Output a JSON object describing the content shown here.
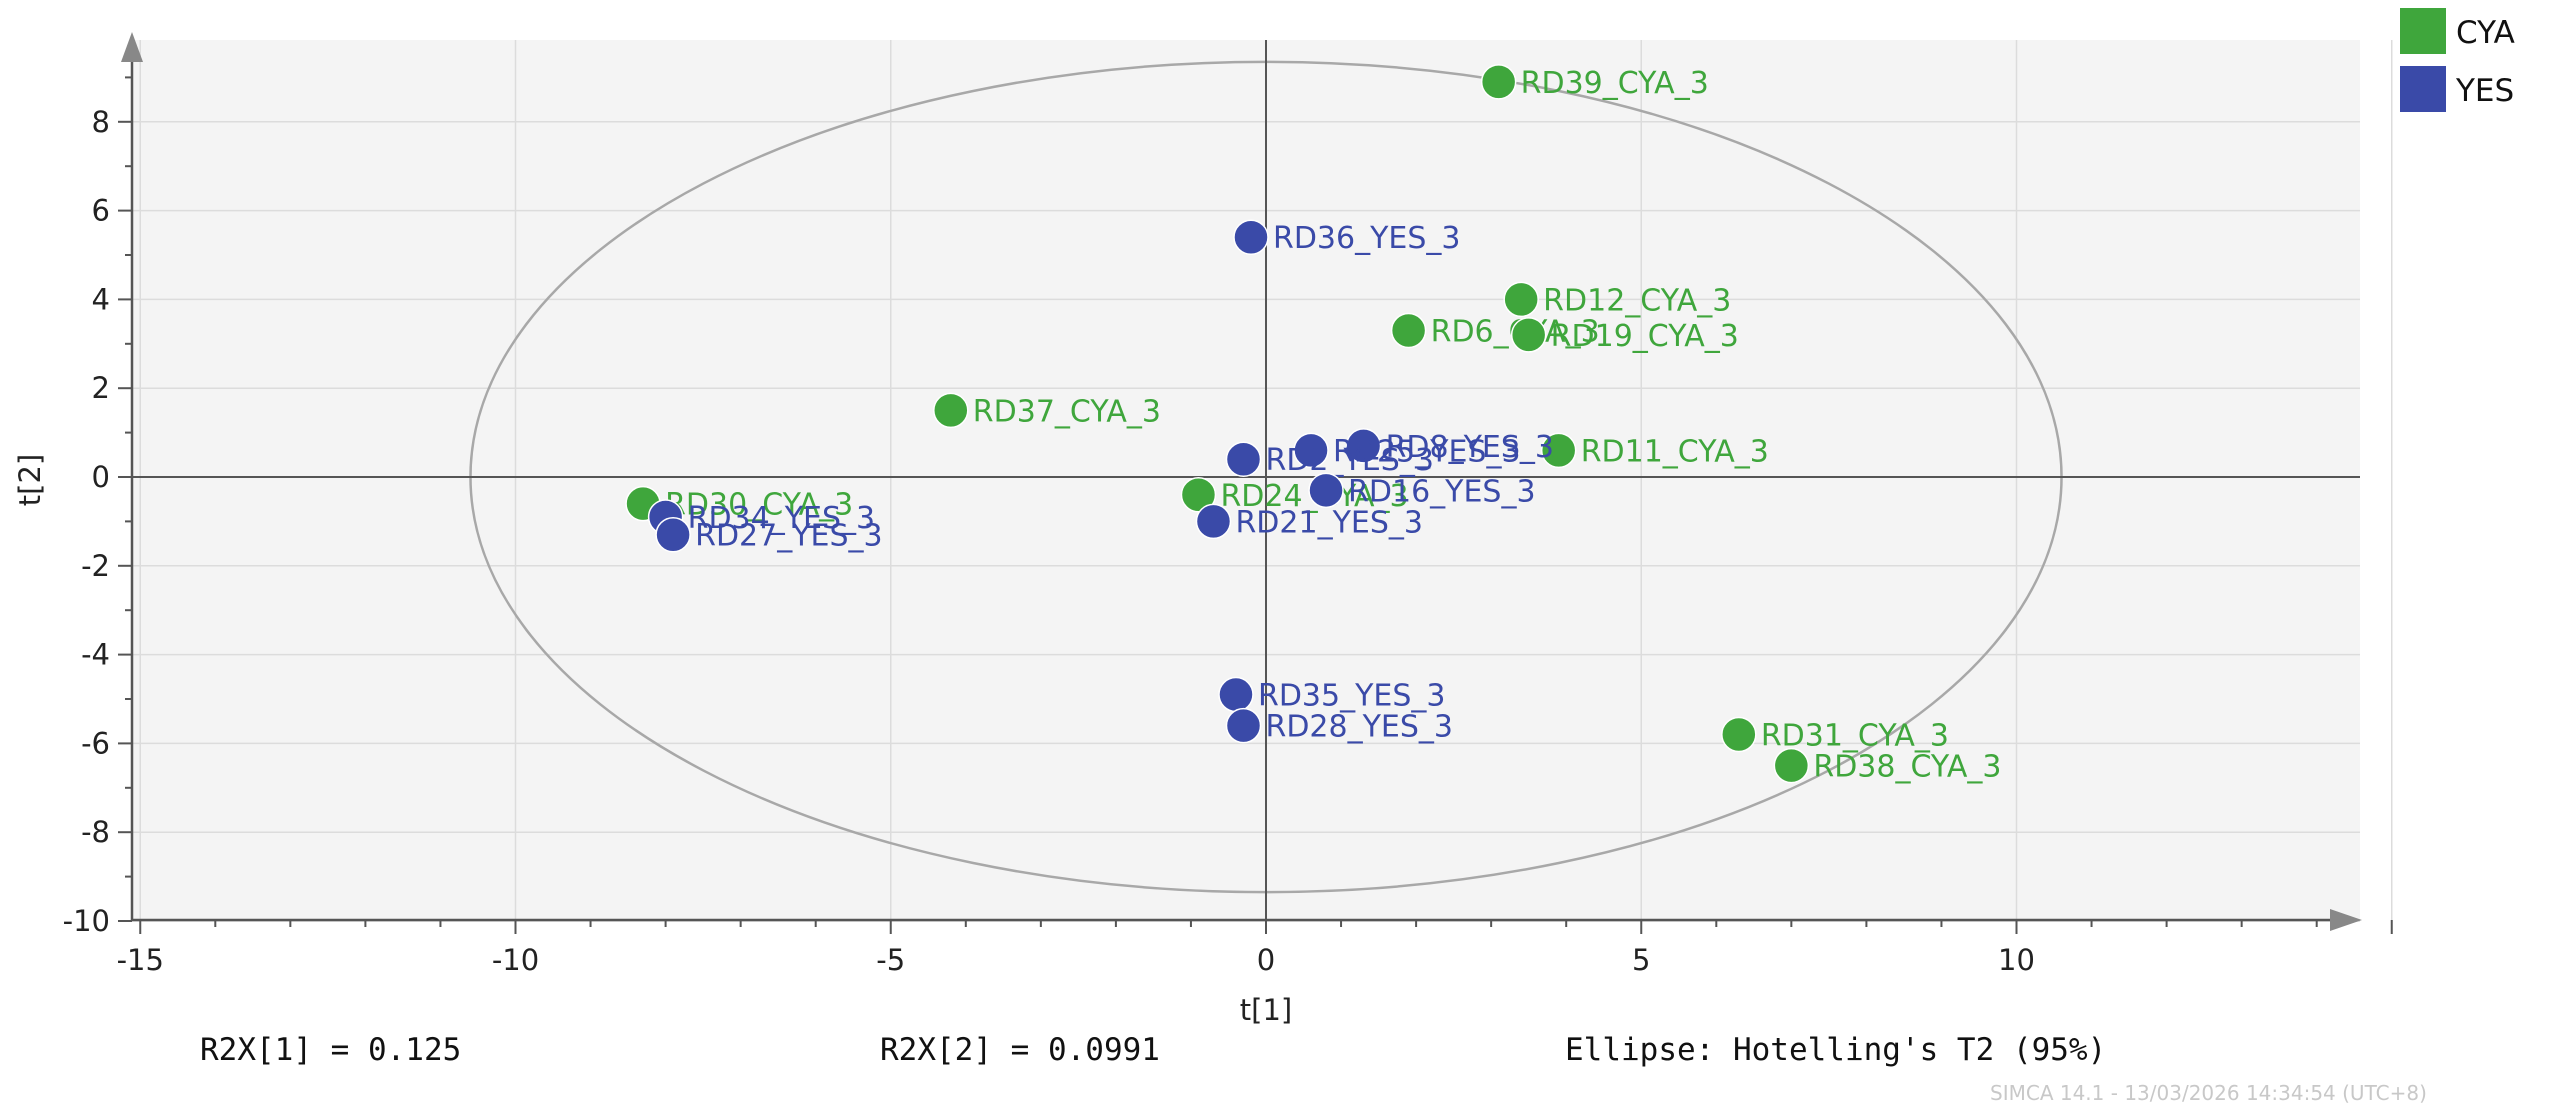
{
  "chart_data": {
    "type": "scatter",
    "xlabel": "t[1]",
    "ylabel": "t[2]",
    "xlim": [
      -15,
      15
    ],
    "ylim": [
      -10,
      10
    ],
    "x_ticks": [
      -15,
      -10,
      -5,
      0,
      5,
      10
    ],
    "y_ticks": [
      8,
      6,
      4,
      2,
      0,
      -2,
      -4,
      -6,
      -8,
      -10
    ],
    "x_tick_labels": [
      "-15",
      "-10",
      "-5",
      "0",
      "5",
      "10"
    ],
    "y_tick_labels": [
      "8",
      "6",
      "4",
      "2",
      "0",
      "-2",
      "-4",
      "-6",
      "-8",
      "-10"
    ],
    "grid": true,
    "legend_position": "top-right",
    "ellipse": {
      "rx": 10.6,
      "ry": 9.35,
      "label": "Ellipse: Hotelling's T2 (95%)"
    },
    "series": [
      {
        "name": "CYA",
        "color": "#3fa63c",
        "points": [
          {
            "label": "RD39_CYA_3",
            "x": 3.1,
            "y": 8.9
          },
          {
            "label": "RD12_CYA_3",
            "x": 3.4,
            "y": 4.0
          },
          {
            "label": "RD6_CYA_3",
            "x": 1.9,
            "y": 3.3
          },
          {
            "label": "RD19_CYA_3",
            "x": 3.5,
            "y": 3.2
          },
          {
            "label": "RD37_CYA_3",
            "x": -4.2,
            "y": 1.5
          },
          {
            "label": "RD11_CYA_3",
            "x": 3.9,
            "y": 0.6
          },
          {
            "label": "RD30_CYA_3",
            "x": -8.3,
            "y": -0.6
          },
          {
            "label": "RD24_CYA_3",
            "x": -0.9,
            "y": -0.4
          },
          {
            "label": "RD31_CYA_3",
            "x": 6.3,
            "y": -5.8
          },
          {
            "label": "RD38_CYA_3",
            "x": 7.0,
            "y": -6.5
          }
        ]
      },
      {
        "name": "YES",
        "color": "#3a4aa8",
        "points": [
          {
            "label": "RD36_YES_3",
            "x": -0.2,
            "y": 5.4
          },
          {
            "label": "RD8_YES_3",
            "x": 1.3,
            "y": 0.7
          },
          {
            "label": "RD25_YES_3",
            "x": 0.6,
            "y": 0.6
          },
          {
            "label": "RD2_YES_3",
            "x": -0.3,
            "y": 0.4
          },
          {
            "label": "RD16_YES_3",
            "x": 0.8,
            "y": -0.3
          },
          {
            "label": "RD21_YES_3",
            "x": -0.7,
            "y": -1.0
          },
          {
            "label": "RD34_YES_3",
            "x": -8.0,
            "y": -0.9
          },
          {
            "label": "RD27_YES_3",
            "x": -7.9,
            "y": -1.3
          },
          {
            "label": "RD35_YES_3",
            "x": -0.4,
            "y": -4.9
          },
          {
            "label": "RD28_YES_3",
            "x": -0.3,
            "y": -5.6
          }
        ]
      }
    ]
  },
  "footer": {
    "r2x1": "R2X[1] = 0.125",
    "r2x2": "R2X[2] = 0.0991",
    "ellipse_label": "Ellipse: Hotelling's T2 (95%)",
    "watermark": "SIMCA 14.1 - 13/03/2026 14:34:54 (UTC+8)"
  },
  "colors": {
    "plot_bg": "#f4f4f4",
    "grid": "#dcdcdc",
    "axis": "#555555",
    "ellipse": "#a8a8a8"
  }
}
